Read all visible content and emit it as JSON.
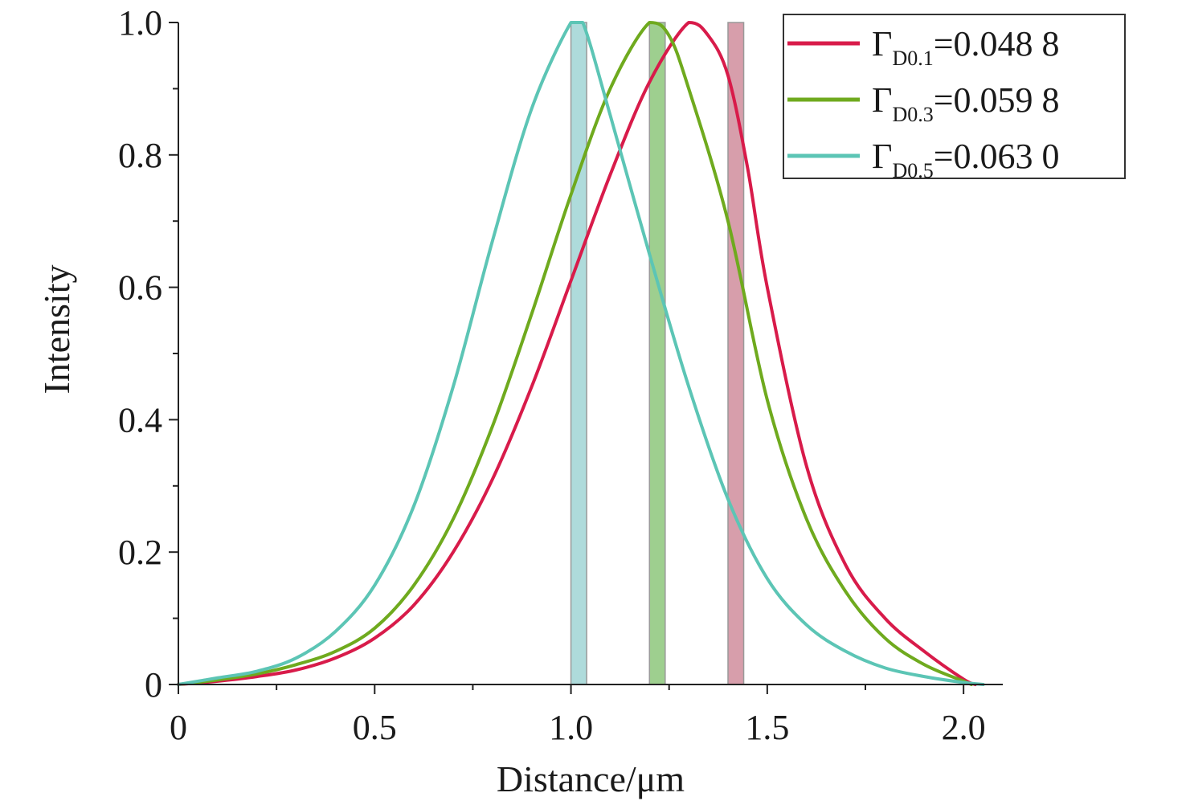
{
  "chart_data": {
    "type": "line",
    "title": "",
    "xlabel": "Distance/μm",
    "ylabel": "Intensity",
    "xlim": [
      0,
      2.1
    ],
    "ylim": [
      0,
      1.0
    ],
    "xticks": [
      0,
      0.5,
      1.0,
      1.5,
      2.0
    ],
    "xtick_labels": [
      "0",
      "0.5",
      "1.0",
      "1.5",
      "2.0"
    ],
    "yticks": [
      0,
      0.2,
      0.4,
      0.6,
      0.8,
      1.0
    ],
    "ytick_labels": [
      "0",
      "0.2",
      "0.4",
      "0.6",
      "0.8",
      "1.0"
    ],
    "grid": false,
    "legend_position": "top-right",
    "series": [
      {
        "name": "Γ_D0.1=0.048 8",
        "legend_main": "Γ",
        "legend_sub": "D0.1",
        "legend_value": "=0.048 8",
        "color": "#d81b4a",
        "marker_x": [
          1.4,
          1.44
        ],
        "marker_color": "#c97d8f",
        "points": [
          [
            0,
            0
          ],
          [
            0.1,
            0.005
          ],
          [
            0.2,
            0.012
          ],
          [
            0.3,
            0.022
          ],
          [
            0.4,
            0.04
          ],
          [
            0.5,
            0.07
          ],
          [
            0.6,
            0.12
          ],
          [
            0.7,
            0.2
          ],
          [
            0.8,
            0.31
          ],
          [
            0.9,
            0.45
          ],
          [
            1.0,
            0.61
          ],
          [
            1.1,
            0.77
          ],
          [
            1.2,
            0.91
          ],
          [
            1.3,
            1.0
          ],
          [
            1.35,
            0.98
          ],
          [
            1.4,
            0.92
          ],
          [
            1.45,
            0.78
          ],
          [
            1.5,
            0.6
          ],
          [
            1.6,
            0.33
          ],
          [
            1.7,
            0.18
          ],
          [
            1.8,
            0.1
          ],
          [
            1.9,
            0.05
          ],
          [
            2.0,
            0.008
          ],
          [
            2.03,
            0
          ]
        ]
      },
      {
        "name": "Γ_D0.3=0.059 8",
        "legend_main": "Γ",
        "legend_sub": "D0.3",
        "legend_value": "=0.059 8",
        "color": "#6faa1e",
        "marker_x": [
          1.2,
          1.24
        ],
        "marker_color": "#7dbf6a",
        "points": [
          [
            0,
            0
          ],
          [
            0.1,
            0.007
          ],
          [
            0.2,
            0.016
          ],
          [
            0.3,
            0.03
          ],
          [
            0.4,
            0.05
          ],
          [
            0.5,
            0.085
          ],
          [
            0.6,
            0.15
          ],
          [
            0.7,
            0.25
          ],
          [
            0.8,
            0.39
          ],
          [
            0.9,
            0.56
          ],
          [
            1.0,
            0.74
          ],
          [
            1.1,
            0.9
          ],
          [
            1.2,
            1.0
          ],
          [
            1.25,
            0.98
          ],
          [
            1.3,
            0.9
          ],
          [
            1.4,
            0.7
          ],
          [
            1.5,
            0.43
          ],
          [
            1.6,
            0.25
          ],
          [
            1.7,
            0.14
          ],
          [
            1.8,
            0.07
          ],
          [
            1.9,
            0.03
          ],
          [
            2.0,
            0.005
          ],
          [
            2.02,
            0
          ]
        ]
      },
      {
        "name": "Γ_D0.5=0.063 0",
        "legend_main": "Γ",
        "legend_sub": "D0.5",
        "legend_value": "=0.063 0",
        "color": "#5cc5b5",
        "marker_x": [
          1.0,
          1.04
        ],
        "marker_color": "#93cfcf",
        "points": [
          [
            0,
            0
          ],
          [
            0.1,
            0.01
          ],
          [
            0.2,
            0.02
          ],
          [
            0.3,
            0.04
          ],
          [
            0.4,
            0.08
          ],
          [
            0.5,
            0.15
          ],
          [
            0.6,
            0.27
          ],
          [
            0.7,
            0.45
          ],
          [
            0.8,
            0.67
          ],
          [
            0.9,
            0.87
          ],
          [
            1.0,
            1.0
          ],
          [
            1.03,
            1.0
          ],
          [
            1.1,
            0.86
          ],
          [
            1.2,
            0.65
          ],
          [
            1.3,
            0.45
          ],
          [
            1.4,
            0.28
          ],
          [
            1.5,
            0.16
          ],
          [
            1.6,
            0.09
          ],
          [
            1.7,
            0.05
          ],
          [
            1.8,
            0.025
          ],
          [
            1.9,
            0.012
          ],
          [
            2.0,
            0.003
          ],
          [
            2.05,
            0
          ]
        ]
      }
    ]
  }
}
